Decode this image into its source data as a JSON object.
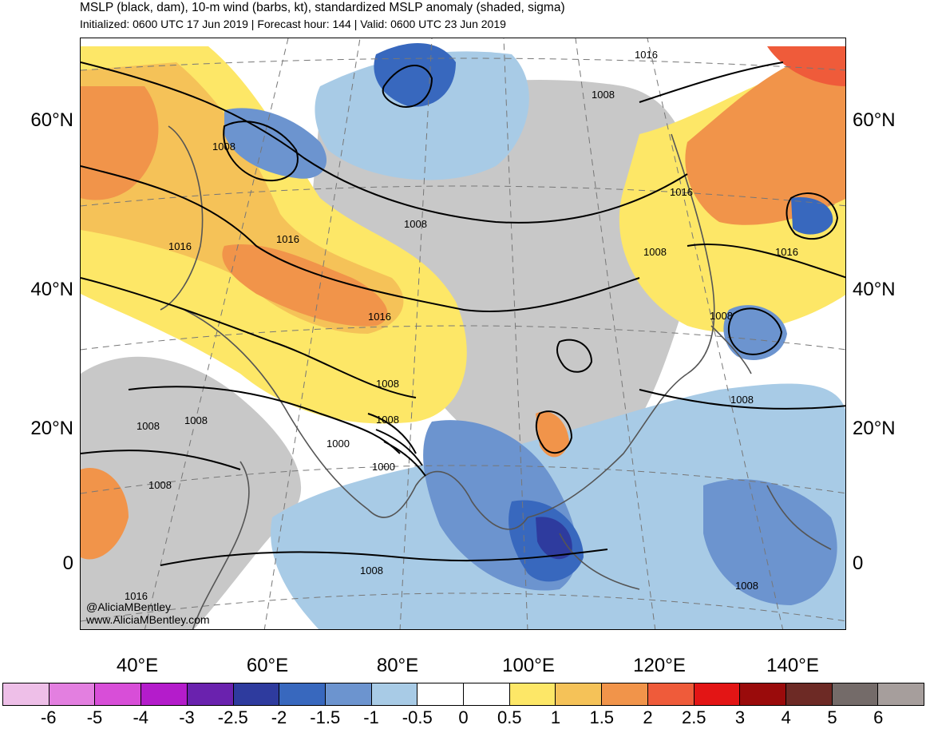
{
  "header": {
    "title": "MSLP (black, dam), 10-m wind (barbs, kt), standardized MSLP anomaly (shaded, sigma)",
    "subtitle": "Initialized: 0600 UTC 17 Jun 2019 | Forecast hour: 144 | Valid: 0600 UTC 23 Jun 2019"
  },
  "latitude_labels": [
    "60°N",
    "40°N",
    "20°N",
    "0"
  ],
  "longitude_labels": [
    "40°E",
    "60°E",
    "80°E",
    "100°E",
    "120°E",
    "140°E"
  ],
  "contour_labels": [
    "1016",
    "1008",
    "1008",
    "1008",
    "1016",
    "1016",
    "1008",
    "1016",
    "1016",
    "1016",
    "1008",
    "1008",
    "1008",
    "1008",
    "1008",
    "1008",
    "1000",
    "1000",
    "1008",
    "1008",
    "1008",
    "1016"
  ],
  "credits": {
    "handle": "@AliciaMBentley",
    "website": "www.AliciaMBentley.com"
  },
  "colorbar": {
    "colors": [
      "#eebfe8",
      "#e37fe0",
      "#d84ed8",
      "#b41ccb",
      "#6a22ae",
      "#2e3b9e",
      "#3868be",
      "#6c94cf",
      "#a8cbe6",
      "#ffffff",
      "#ffffff",
      "#fde767",
      "#f5c258",
      "#f1944a",
      "#ef5b3a",
      "#e31515",
      "#9a0b0b",
      "#6d2a25",
      "#746b69",
      "#a69e9c"
    ],
    "labels": [
      "-6",
      "-5",
      "-4",
      "-3",
      "-2.5",
      "-2",
      "-1.5",
      "-1",
      "-0.5",
      "0",
      "0.5",
      "1",
      "1.5",
      "2",
      "2.5",
      "3",
      "4",
      "5",
      "6"
    ]
  }
}
